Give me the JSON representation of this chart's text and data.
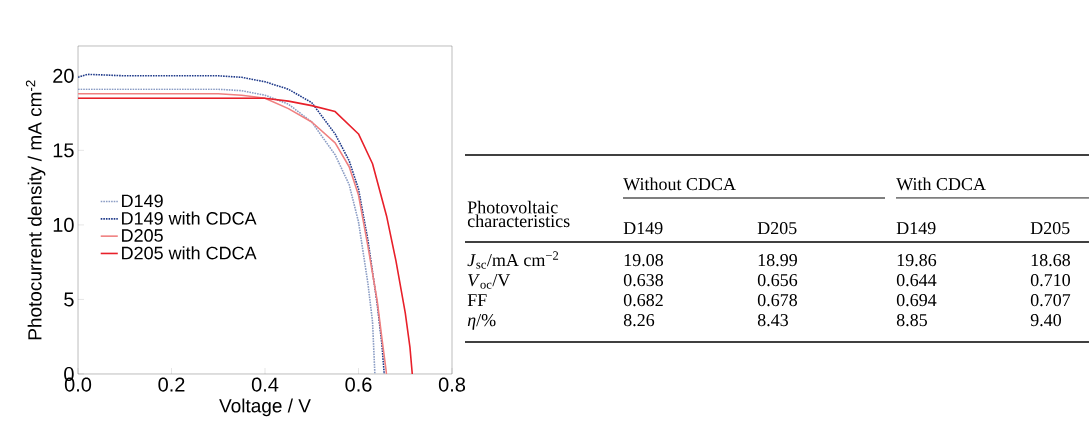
{
  "chart_data": [
    {
      "type": "line",
      "xlabel": "Voltage / V",
      "ylabel": "Photocurrent density / mA cm$^{-2}$",
      "xlim": [
        0,
        0.8
      ],
      "ylim": [
        0,
        22
      ],
      "xticks": [
        {
          "value": 0,
          "label": "0.0"
        },
        {
          "value": 0.2,
          "label": "0.2"
        },
        {
          "value": 0.4,
          "label": "0.4"
        },
        {
          "value": 0.6,
          "label": "0.6"
        },
        {
          "value": 0.8,
          "label": "0.8"
        }
      ],
      "yticks": [
        0,
        5,
        10,
        15,
        20
      ],
      "grid": false,
      "legend": "left",
      "marker": "none",
      "series": [
        {
          "name": "D149",
          "color": "#8a9cc4",
          "line_style": "dotted",
          "x": [
            0,
            0.1,
            0.2,
            0.3,
            0.35,
            0.4,
            0.45,
            0.5,
            0.55,
            0.58,
            0.6,
            0.62,
            0.63,
            0.635
          ],
          "values": [
            19.1,
            19.1,
            19.1,
            19.1,
            19.0,
            18.7,
            18.1,
            16.9,
            14.7,
            12.7,
            10.2,
            6.1,
            3.5,
            0
          ]
        },
        {
          "name": "D149 with CDCA",
          "color": "#1f3a8a",
          "line_style": "dotted",
          "x": [
            0,
            0.02,
            0.1,
            0.2,
            0.3,
            0.35,
            0.4,
            0.45,
            0.5,
            0.55,
            0.58,
            0.6,
            0.62,
            0.64,
            0.65,
            0.655
          ],
          "values": [
            19.9,
            20.1,
            20.0,
            20.0,
            20.0,
            19.9,
            19.6,
            19.1,
            18.2,
            16.1,
            14.3,
            12.4,
            9.0,
            4.7,
            2.0,
            0
          ]
        },
        {
          "name": "D205",
          "color": "#f08080",
          "line_style": "solid",
          "x": [
            0,
            0.1,
            0.2,
            0.3,
            0.35,
            0.4,
            0.45,
            0.5,
            0.55,
            0.58,
            0.6,
            0.62,
            0.64,
            0.65,
            0.66
          ],
          "values": [
            18.8,
            18.8,
            18.8,
            18.8,
            18.7,
            18.5,
            17.8,
            16.9,
            15.5,
            13.9,
            12.0,
            8.6,
            4.9,
            2.4,
            0
          ]
        },
        {
          "name": "D205 with CDCA",
          "color": "#e8202a",
          "line_style": "solid",
          "x": [
            0,
            0.1,
            0.2,
            0.3,
            0.4,
            0.45,
            0.5,
            0.55,
            0.6,
            0.63,
            0.66,
            0.68,
            0.7,
            0.71,
            0.715
          ],
          "values": [
            18.5,
            18.5,
            18.5,
            18.5,
            18.5,
            18.3,
            18.0,
            17.6,
            16.1,
            14.1,
            10.6,
            7.6,
            4.1,
            1.8,
            0
          ]
        }
      ]
    },
    {
      "type": "other",
      "annotations": [
        "Photovoltaic characteristics",
        "Without CDCA",
        "With CDCA"
      ],
      "categories": [
        "D149",
        "D205",
        "D149",
        "D205"
      ],
      "y_categories": [
        "*J*$_{sc}$/mA cm$^{−2}$",
        "*V*$_{oc}$/V",
        "FF",
        "*η*/%"
      ],
      "cell_labels": [
        [
          "19.08",
          "18.99",
          "19.86",
          "18.68"
        ],
        [
          "0.638",
          "0.656",
          "0.644",
          "0.710"
        ],
        [
          "0.682",
          "0.678",
          "0.694",
          "0.707"
        ],
        [
          "8.26",
          "8.43",
          "8.85",
          "9.40"
        ]
      ]
    }
  ]
}
